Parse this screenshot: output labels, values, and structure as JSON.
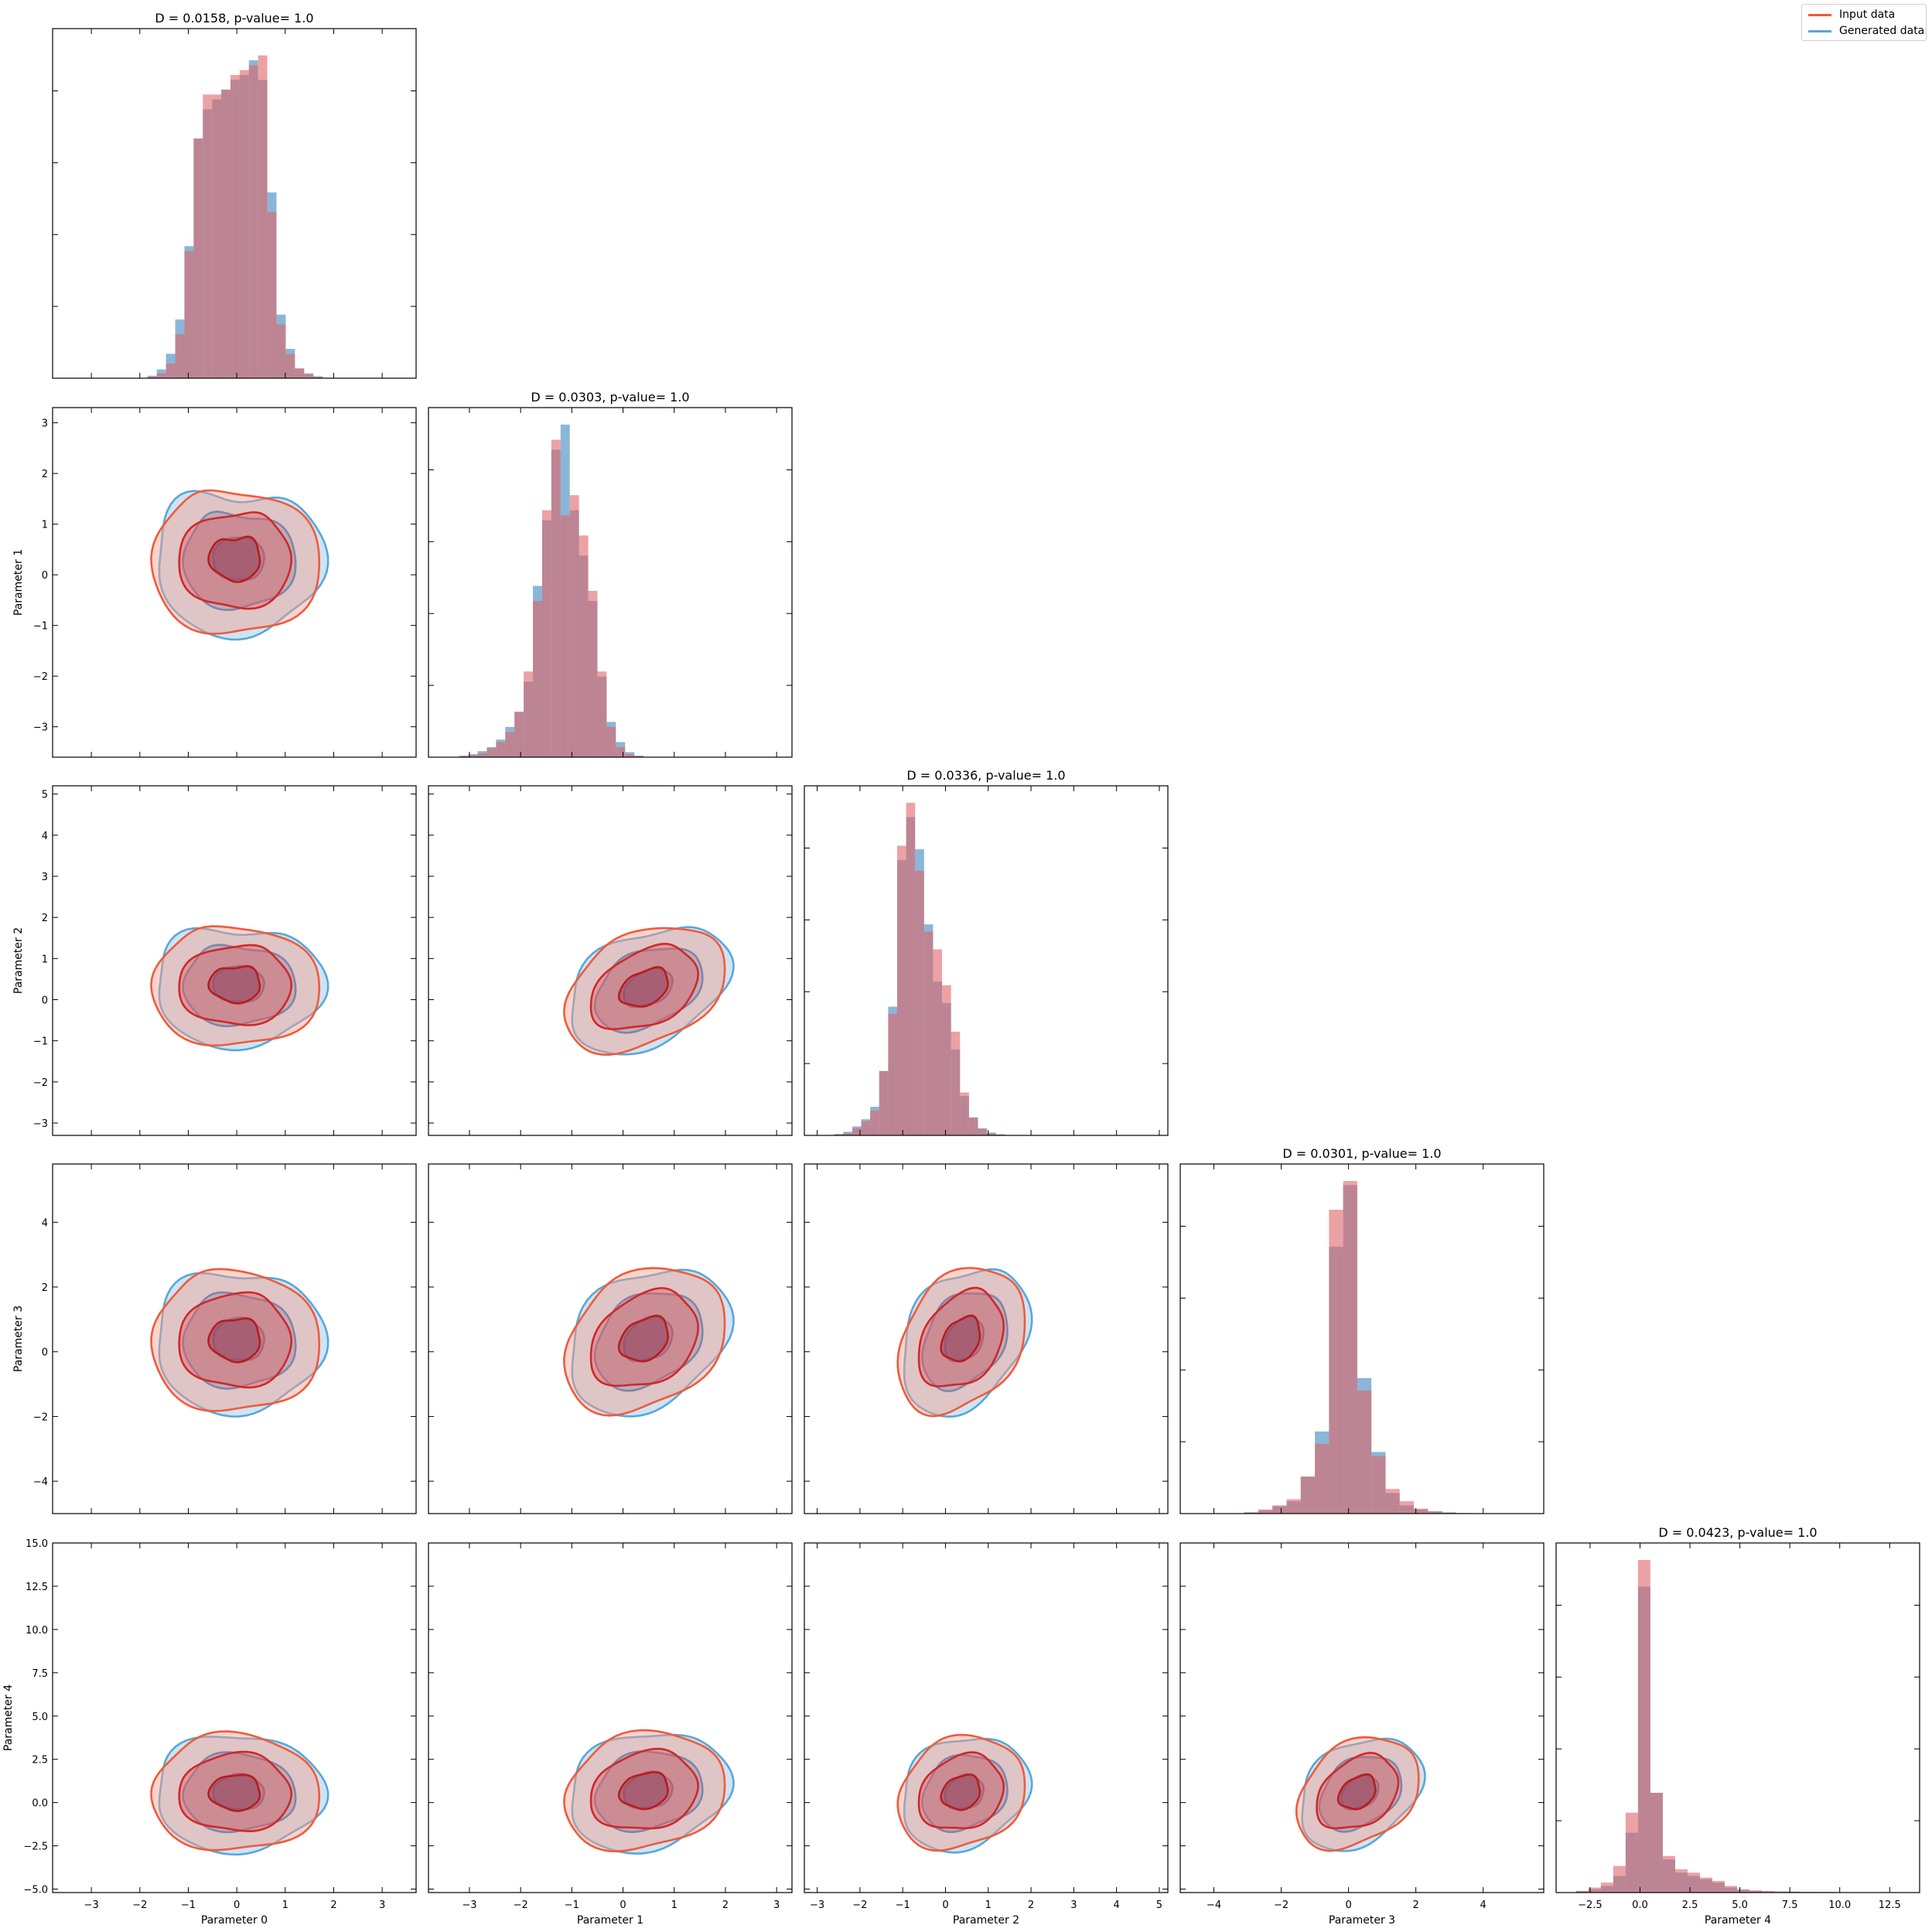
{
  "legend": {
    "items": [
      {
        "label": "Input data",
        "color": "#f05a3c"
      },
      {
        "label": "Generated data",
        "color": "#5aa6d8"
      }
    ],
    "placement": "top-right"
  },
  "colors": {
    "input_fill": "#e06468",
    "generated_fill": "#3d86bd",
    "overlap": "#8a88a8",
    "input_line_dark": "#b81c1c",
    "generated_line_dark": "#1f3c8c",
    "input_outer": "#f4a090",
    "generated_outer": "#92c4e2"
  },
  "chart_data": {
    "type": "corner",
    "parameters": [
      "Parameter 0",
      "Parameter 1",
      "Parameter 2",
      "Parameter 3",
      "Parameter 4"
    ],
    "ranges": [
      [
        -3.8,
        3.7
      ],
      [
        -3.8,
        3.3
      ],
      [
        -3.3,
        5.2
      ],
      [
        -5.0,
        5.8
      ],
      [
        -4.2,
        14.0
      ]
    ],
    "xticks": [
      [
        -3,
        -2,
        -1,
        0,
        1,
        2,
        3
      ],
      [
        -3,
        -2,
        -1,
        0,
        1,
        2,
        3
      ],
      [
        -3,
        -2,
        -1,
        0,
        1,
        2,
        3,
        4,
        5
      ],
      [
        -4,
        -2,
        0,
        2,
        4
      ],
      [
        -2.5,
        0.0,
        2.5,
        5.0,
        7.5,
        10.0,
        12.5
      ]
    ],
    "xtick_labels": [
      [
        "−3",
        "−2",
        "−1",
        "0",
        "1",
        "2",
        "3"
      ],
      [
        "−3",
        "−2",
        "−1",
        "0",
        "1",
        "2",
        "3"
      ],
      [
        "−3",
        "−2",
        "−1",
        "0",
        "1",
        "2",
        "3",
        "4",
        "5"
      ],
      [
        "−4",
        "−2",
        "0",
        "2",
        "4"
      ],
      [
        "−2.5",
        "0.0",
        "2.5",
        "5.0",
        "7.5",
        "10.0",
        "12.5"
      ]
    ],
    "yticks": [
      null,
      [
        -3,
        -2,
        -1,
        0,
        1,
        2,
        3
      ],
      [
        -3,
        -2,
        -1,
        0,
        1,
        2,
        3,
        4,
        5
      ],
      [
        -4,
        -2,
        0,
        2,
        4
      ],
      [
        -5.0,
        -2.5,
        0.0,
        2.5,
        5.0,
        7.5,
        10.0,
        12.5,
        15.0
      ]
    ],
    "ytick_labels": [
      null,
      [
        "−3",
        "−2",
        "−1",
        "0",
        "1",
        "2",
        "3"
      ],
      [
        "−3",
        "−2",
        "−1",
        "0",
        "1",
        "2",
        "3",
        "4",
        "5"
      ],
      [
        "−4",
        "−2",
        "0",
        "2",
        "4"
      ],
      [
        "−5.0",
        "−2.5",
        "0.0",
        "2.5",
        "5.0",
        "7.5",
        "10.0",
        "12.5",
        "15.0"
      ]
    ],
    "ylims_2d": {
      "1": [
        -3.6,
        3.3
      ],
      "2": [
        -3.3,
        5.2
      ],
      "3": [
        -5.0,
        5.8
      ],
      "4": [
        -5.2,
        15.0
      ]
    },
    "diagonal_titles": [
      "D = 0.0158, p-value= 1.0",
      "D = 0.0303, p-value= 1.0",
      "D = 0.0336, p-value= 1.0",
      "D = 0.0301, p-value= 1.0",
      "D = 0.0423, p-value= 1.0"
    ],
    "histograms": [
      {
        "x0": -1.84,
        "binwidth": 0.19,
        "ymax": 0.68,
        "input": [
          0.003,
          0.01,
          0.03,
          0.09,
          0.26,
          0.49,
          0.58,
          0.58,
          0.59,
          0.62,
          0.63,
          0.64,
          0.66,
          0.34,
          0.11,
          0.05,
          0.02,
          0.008,
          0.003,
          0.0
        ],
        "generated": [
          0.005,
          0.018,
          0.05,
          0.12,
          0.27,
          0.49,
          0.55,
          0.57,
          0.59,
          0.61,
          0.62,
          0.65,
          0.61,
          0.38,
          0.13,
          0.06,
          0.02,
          0.01,
          0.004,
          0.001
        ]
      },
      {
        "x0": -3.2,
        "binwidth": 0.18,
        "ymax": 0.66,
        "input": [
          0.002,
          0.004,
          0.008,
          0.018,
          0.03,
          0.05,
          0.09,
          0.17,
          0.31,
          0.49,
          0.63,
          0.48,
          0.52,
          0.44,
          0.33,
          0.17,
          0.06,
          0.02,
          0.006,
          0.002
        ],
        "generated": [
          0.003,
          0.006,
          0.012,
          0.02,
          0.035,
          0.06,
          0.09,
          0.15,
          0.34,
          0.47,
          0.61,
          0.66,
          0.49,
          0.4,
          0.31,
          0.16,
          0.07,
          0.03,
          0.01,
          0.003
        ]
      },
      {
        "x0": -2.6,
        "binwidth": 0.21,
        "ymax": 0.93,
        "input": [
          0.002,
          0.006,
          0.02,
          0.04,
          0.07,
          0.18,
          0.34,
          0.81,
          0.93,
          0.74,
          0.57,
          0.52,
          0.42,
          0.29,
          0.12,
          0.05,
          0.018,
          0.005,
          0.002,
          0.0
        ],
        "generated": [
          0.004,
          0.01,
          0.025,
          0.045,
          0.08,
          0.18,
          0.36,
          0.77,
          0.89,
          0.8,
          0.59,
          0.43,
          0.37,
          0.24,
          0.11,
          0.05,
          0.02,
          0.008,
          0.003,
          0.001
        ]
      },
      {
        "x0": -3.1,
        "binwidth": 0.42,
        "ymax": 0.81,
        "input": [
          0.003,
          0.01,
          0.02,
          0.035,
          0.09,
          0.17,
          0.74,
          0.81,
          0.3,
          0.14,
          0.06,
          0.03,
          0.012,
          0.005,
          0.002,
          0.001
        ],
        "generated": [
          0.003,
          0.008,
          0.018,
          0.03,
          0.09,
          0.2,
          0.65,
          0.8,
          0.33,
          0.15,
          0.05,
          0.02,
          0.01,
          0.006,
          0.003,
          0.001
        ]
      },
      {
        "x0": -3.2,
        "binwidth": 0.62,
        "ymax": 1.0,
        "input": [
          0.005,
          0.015,
          0.03,
          0.08,
          0.24,
          1.0,
          0.3,
          0.11,
          0.07,
          0.06,
          0.045,
          0.035,
          0.02,
          0.01,
          0.006,
          0.004,
          0.003,
          0.002,
          0.002,
          0.001,
          0.001,
          0.001,
          0.001,
          0.0,
          0.0,
          0.0,
          0.001,
          0.0
        ],
        "generated": [
          0.004,
          0.01,
          0.02,
          0.05,
          0.18,
          0.92,
          0.3,
          0.1,
          0.06,
          0.05,
          0.04,
          0.03,
          0.015,
          0.008,
          0.006,
          0.004,
          0.003,
          0.003,
          0.002,
          0.002,
          0.002,
          0.001,
          0.001,
          0.001,
          0.001,
          0.0,
          0.001,
          0.0
        ]
      }
    ],
    "contours_2d": [
      {
        "row": 1,
        "col": 0,
        "cx": 0.0,
        "cy": 0.35,
        "sx": 1.05,
        "sy": 0.95,
        "bend": 0.45,
        "skew": 0.0
      },
      {
        "row": 2,
        "col": 0,
        "cx": 0.0,
        "cy": 0.4,
        "sx": 1.05,
        "sy": 0.95,
        "bend": 0.35,
        "skew": 0.0
      },
      {
        "row": 2,
        "col": 1,
        "cx": 0.45,
        "cy": 0.3,
        "sx": 0.95,
        "sy": 0.9,
        "bend": 0.2,
        "skew": 0.35
      },
      {
        "row": 3,
        "col": 0,
        "cx": 0.0,
        "cy": 0.4,
        "sx": 1.05,
        "sy": 1.4,
        "bend": 0.25,
        "skew": 0.0
      },
      {
        "row": 3,
        "col": 1,
        "cx": 0.45,
        "cy": 0.4,
        "sx": 0.95,
        "sy": 1.35,
        "bend": 0.15,
        "skew": 0.4
      },
      {
        "row": 3,
        "col": 2,
        "cx": 0.4,
        "cy": 0.4,
        "sx": 0.9,
        "sy": 1.35,
        "bend": 0.15,
        "skew": 0.45
      },
      {
        "row": 4,
        "col": 0,
        "cx": 0.0,
        "cy": 0.6,
        "sx": 1.05,
        "sy": 2.1,
        "bend": 0.1,
        "skew": 0.0
      },
      {
        "row": 4,
        "col": 1,
        "cx": 0.45,
        "cy": 0.7,
        "sx": 0.95,
        "sy": 2.1,
        "bend": 0.1,
        "skew": 0.35
      },
      {
        "row": 4,
        "col": 2,
        "cx": 0.4,
        "cy": 0.6,
        "sx": 0.9,
        "sy": 2.0,
        "bend": 0.1,
        "skew": 0.4
      },
      {
        "row": 4,
        "col": 3,
        "cx": 0.3,
        "cy": 0.6,
        "sx": 1.1,
        "sy": 1.9,
        "bend": 0.1,
        "skew": 0.55
      }
    ],
    "contour_levels": [
      0.5,
      1.1,
      1.65
    ]
  }
}
